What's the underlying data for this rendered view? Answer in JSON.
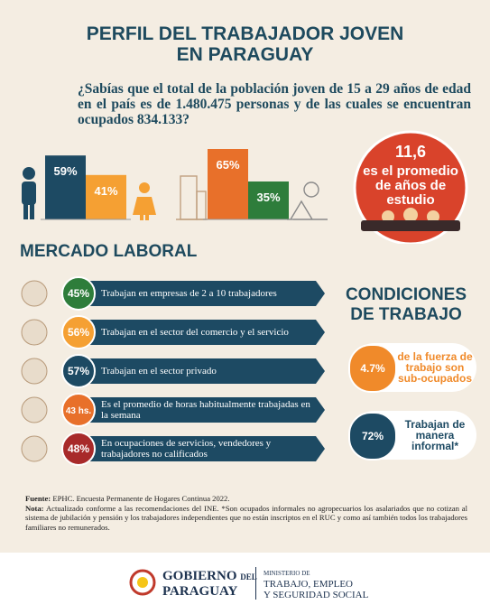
{
  "header": {
    "title_lines": [
      "PERFIL DEL TRABAJADOR JOVEN",
      "EN PARAGUAY"
    ],
    "question": "¿Sabías que el total de la población joven de 15 a 29 años de edad en el país es de 1.480.475 personas y de las cuales se encuentran ocupados 834.133?"
  },
  "bars": {
    "gender": {
      "values": [
        59,
        41
      ],
      "value_labels": [
        "59%",
        "41%"
      ],
      "colors": [
        "#1d4a63",
        "#f5a033"
      ]
    },
    "area": {
      "values": [
        65,
        35
      ],
      "value_labels": [
        "65%",
        "35%"
      ],
      "colors": [
        "#e8702a",
        "#2e7d3b"
      ]
    }
  },
  "highlight": {
    "value": "11,6",
    "text": "es el promedio de años de estudio"
  },
  "mercado": {
    "title": "MERCADO LABORAL",
    "items": [
      {
        "badge": "45%",
        "color": "#2e7d3b",
        "text": "Trabajan en empresas de 2 a 10 trabajadores"
      },
      {
        "badge": "56%",
        "color": "#f5a033",
        "text": "Trabajan en el sector del comercio y el servicio"
      },
      {
        "badge": "57%",
        "color": "#1d4a63",
        "text": "Trabajan en el sector privado"
      },
      {
        "badge": "43 hs.",
        "color": "#e8702a",
        "text": "Es el promedio de horas habitualmente trabajadas en la semana"
      },
      {
        "badge": "48%",
        "color": "#a82a2a",
        "text": "En ocupaciones de servicios, vendedores y trabajadores no calificados"
      }
    ]
  },
  "condiciones": {
    "title_lines": [
      "CONDICIONES",
      "DE TRABAJO"
    ],
    "items": [
      {
        "badge": "4.7%",
        "color": "#f08a2a",
        "text": "de la fuerza de trabajo son sub-ocupados"
      },
      {
        "badge": "72%",
        "color": "#1d4a63",
        "text": "Trabajan de manera informal*"
      }
    ]
  },
  "footer": {
    "source_label": "Fuente:",
    "source": "EPHC. Encuesta Permanente de Hogares Continua 2022.",
    "note_label": "Nota:",
    "note": "Actualizado conforme a las recomendaciones del INE. *Son ocupados informales no agropecuarios los asalariados que no cotizan al sistema de jubilación y pensión y los trabajadores independientes que no están inscriptos en el RUC y como así también todos los trabajadores familiares no remunerados."
  },
  "logo": {
    "gobierno": "GOBIERNO",
    "del": "DEL",
    "paraguay": "PARAGUAY",
    "ministerio": "MINISTERIO DE",
    "trabajo": "TRABAJO, EMPLEO",
    "seguridad": "Y SEGURIDAD SOCIAL"
  }
}
